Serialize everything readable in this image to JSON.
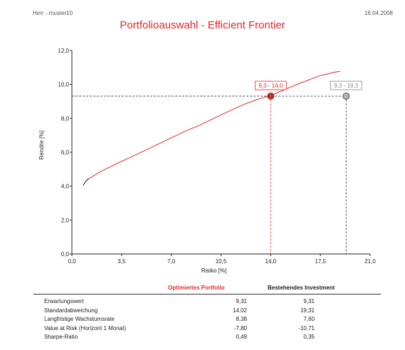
{
  "header": {
    "left": "Herr - muster10",
    "right": "16.04.2008"
  },
  "title": "Portfolioauswahl - Efficient Frontier",
  "colors": {
    "accent": "#e8262b",
    "existing": "#b5b5b5",
    "frontier_start": "#111111"
  },
  "chart_data": {
    "type": "line",
    "xlabel": "Risiko [%]",
    "ylabel": "Rendite [%]",
    "xlim": [
      0,
      21
    ],
    "ylim": [
      0,
      12
    ],
    "x_ticks": [
      "0,0",
      "3,5",
      "7,0",
      "10,5",
      "14,0",
      "17,5",
      "21,0"
    ],
    "y_ticks": [
      "0,0",
      "2,0",
      "4,0",
      "6,0",
      "8,0",
      "10,0",
      "12,0"
    ],
    "series": [
      {
        "x": [
          0.8,
          0.9,
          1.0,
          1.2,
          1.5,
          2.0,
          2.6,
          3.2,
          4.0,
          5.0,
          6.0,
          7.0,
          8.0,
          9.0,
          10.0,
          11.0,
          12.0,
          13.0,
          14.0,
          15.0,
          16.0,
          17.0,
          17.5,
          18.0,
          18.5,
          18.9
        ],
        "y": [
          4.05,
          4.2,
          4.3,
          4.45,
          4.6,
          4.85,
          5.1,
          5.35,
          5.65,
          6.05,
          6.45,
          6.85,
          7.25,
          7.6,
          8.0,
          8.4,
          8.78,
          9.1,
          9.35,
          9.7,
          10.05,
          10.37,
          10.52,
          10.62,
          10.72,
          10.78
        ]
      }
    ],
    "points": [
      {
        "label": "9,3 - 14,0",
        "x": 14.0,
        "y": 9.31,
        "color": "#e8262b"
      },
      {
        "label": "9,3 - 19,3",
        "x": 19.31,
        "y": 9.31,
        "color": "#b5b5b5"
      }
    ],
    "grid": false
  },
  "table": {
    "col_opt": "Optimiertes Portfolio",
    "col_inv": "Bestehendes Investment",
    "rows": [
      {
        "label": "Erwartungswert",
        "opt": "9,31",
        "inv": "9,31"
      },
      {
        "label": "Standardabweichung",
        "opt": "14,02",
        "inv": "19,31"
      },
      {
        "label": "Langfristige Wachstumsrate",
        "opt": "8,38",
        "inv": "7,60"
      },
      {
        "label": "Value at Risk (Horizont 1 Monat)",
        "opt": "-7,80",
        "inv": "-10,71"
      },
      {
        "label": "Sharpe-Ratio",
        "opt": "0,49",
        "inv": "0,35"
      }
    ]
  }
}
